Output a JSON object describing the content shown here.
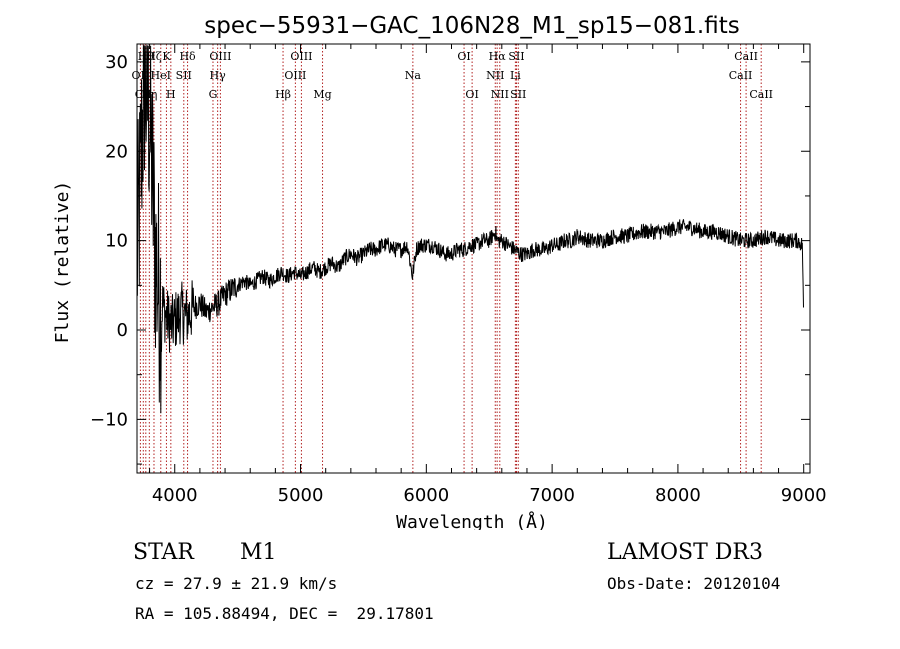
{
  "chart_data": {
    "type": "line",
    "title": "spec−55931−GAC_106N28_M1_sp15−081.fits",
    "xlabel": "Wavelength (Å)",
    "ylabel": "Flux (relative)",
    "xlim": [
      3700,
      9050
    ],
    "ylim": [
      -16,
      32
    ],
    "xticks": [
      4000,
      5000,
      6000,
      7000,
      8000,
      9000
    ],
    "yticks": [
      -10,
      0,
      10,
      20,
      30
    ],
    "series": [
      {
        "name": "flux",
        "x": [
          3700,
          3720,
          3740,
          3760,
          3780,
          3800,
          3820,
          3840,
          3860,
          3880,
          3900,
          3920,
          3950,
          3980,
          4000,
          4050,
          4100,
          4150,
          4200,
          4250,
          4300,
          4350,
          4400,
          4450,
          4500,
          4550,
          4600,
          4650,
          4700,
          4750,
          4800,
          4850,
          4900,
          4950,
          5000,
          5050,
          5100,
          5150,
          5200,
          5250,
          5300,
          5350,
          5400,
          5450,
          5500,
          5550,
          5600,
          5650,
          5700,
          5750,
          5800,
          5850,
          5890,
          5920,
          5950,
          6000,
          6050,
          6100,
          6150,
          6200,
          6250,
          6300,
          6350,
          6400,
          6450,
          6500,
          6550,
          6563,
          6600,
          6650,
          6700,
          6750,
          6800,
          6850,
          6900,
          6950,
          7000,
          7050,
          7100,
          7150,
          7200,
          7300,
          7400,
          7500,
          7600,
          7700,
          7800,
          7900,
          8000,
          8100,
          8200,
          8300,
          8400,
          8500,
          8600,
          8700,
          8800,
          8900,
          8950,
          8990,
          9000
        ],
        "y": [
          8,
          14,
          22,
          28,
          26,
          24,
          18,
          10,
          6,
          4,
          3,
          2,
          1,
          0.5,
          1,
          2,
          1.5,
          2.5,
          3,
          2,
          2.5,
          3,
          4,
          4.5,
          5,
          5.5,
          5,
          5.5,
          6,
          5.5,
          6,
          6.5,
          6,
          6.5,
          6,
          6.5,
          7,
          6.5,
          7,
          7.5,
          7,
          8,
          8.5,
          8,
          8.5,
          9,
          9,
          9.5,
          9.5,
          9,
          9,
          9.5,
          6,
          9,
          9.5,
          9.5,
          9.5,
          9,
          8.5,
          8.5,
          9,
          9,
          9.5,
          9.5,
          10,
          10,
          11,
          10,
          10,
          9.5,
          9,
          8.5,
          8.5,
          9,
          9,
          9,
          9.5,
          9.5,
          10,
          10,
          10.5,
          10,
          10,
          10.5,
          10.5,
          11,
          11,
          11,
          11.5,
          11.5,
          11,
          11,
          10.5,
          10,
          10,
          10.5,
          10,
          10,
          10,
          9.5,
          0
        ]
      }
    ],
    "lines": [
      {
        "x": 3727,
        "label": "OII",
        "row": 1
      },
      {
        "x": 3750,
        "label": "CII",
        "row": 2
      },
      {
        "x": 3770,
        "label": "Hθ",
        "row": 0
      },
      {
        "x": 3798,
        "label": "Hη",
        "row": 2
      },
      {
        "x": 3835,
        "label": "Hζ",
        "row": 0
      },
      {
        "x": 3889,
        "label": "HeI",
        "row": 1
      },
      {
        "x": 3934,
        "label": "K",
        "row": 0
      },
      {
        "x": 3969,
        "label": "H",
        "row": 2
      },
      {
        "x": 4072,
        "label": "SII",
        "row": 1
      },
      {
        "x": 4102,
        "label": "Hδ",
        "row": 0
      },
      {
        "x": 4304,
        "label": "G",
        "row": 2
      },
      {
        "x": 4341,
        "label": "Hγ",
        "row": 1
      },
      {
        "x": 4363,
        "label": "OIII",
        "row": 0
      },
      {
        "x": 4861,
        "label": "Hβ",
        "row": 2
      },
      {
        "x": 4959,
        "label": "OIII",
        "row": 1
      },
      {
        "x": 5007,
        "label": "OIII",
        "row": 0
      },
      {
        "x": 5175,
        "label": "Mg",
        "row": 2
      },
      {
        "x": 5893,
        "label": "Na",
        "row": 1
      },
      {
        "x": 6300,
        "label": "OI",
        "row": 0
      },
      {
        "x": 6364,
        "label": "OI",
        "row": 2
      },
      {
        "x": 6548,
        "label": "NII",
        "row": 1
      },
      {
        "x": 6563,
        "label": "Hα",
        "row": 0
      },
      {
        "x": 6584,
        "label": "NII",
        "row": 2
      },
      {
        "x": 6708,
        "label": "Li",
        "row": 1
      },
      {
        "x": 6717,
        "label": "SII",
        "row": 0
      },
      {
        "x": 6731,
        "label": "SII",
        "row": 2
      },
      {
        "x": 8498,
        "label": "CaII",
        "row": 1
      },
      {
        "x": 8542,
        "label": "CaII",
        "row": 0
      },
      {
        "x": 8662,
        "label": "CaII",
        "row": 2
      }
    ]
  },
  "info": {
    "object_class": "STAR",
    "subclass": "M1",
    "survey": "LAMOST DR3",
    "cz": "cz = 27.9 ± 21.9 km/s",
    "obs_date": "Obs-Date: 20120104",
    "coords": "RA = 105.88494, DEC =  29.17801"
  }
}
